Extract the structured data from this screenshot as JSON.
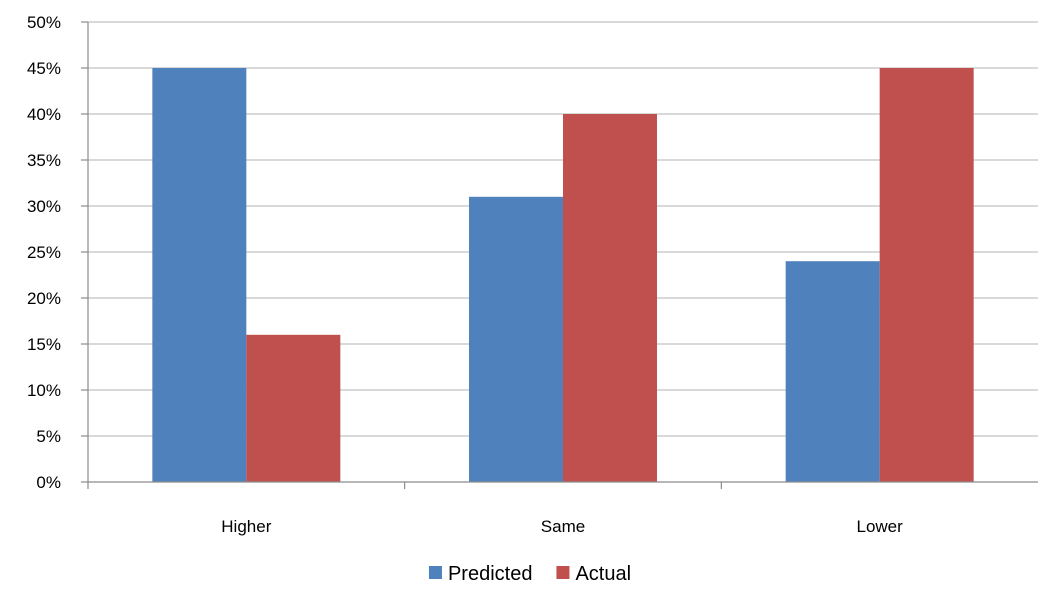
{
  "chart_data": {
    "type": "bar",
    "categories": [
      "Higher",
      "Same",
      "Lower"
    ],
    "series": [
      {
        "name": "Predicted",
        "values": [
          45,
          31,
          24
        ],
        "color": "#4F81BD"
      },
      {
        "name": "Actual",
        "values": [
          16,
          40,
          45
        ],
        "color": "#C0504D"
      }
    ],
    "yticks": [
      "0%",
      "5%",
      "10%",
      "15%",
      "20%",
      "25%",
      "30%",
      "35%",
      "40%",
      "45%",
      "50%"
    ],
    "ylim": [
      0,
      50
    ],
    "ystep": 5,
    "grid": true,
    "legend_position": "bottom"
  }
}
